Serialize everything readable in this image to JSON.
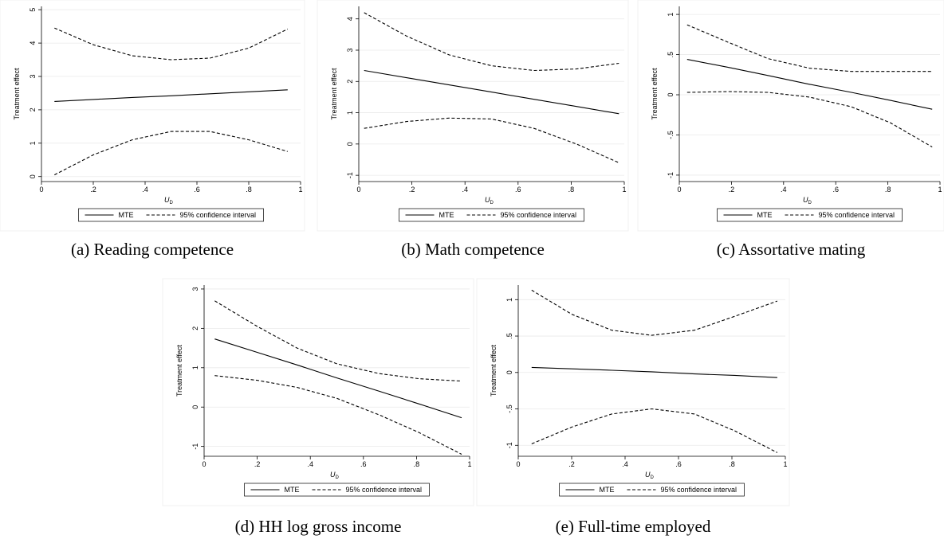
{
  "chart_data": [
    {
      "type": "line",
      "caption": "(a) Reading competence",
      "ylabel": "Treatment effect",
      "xlabel": "U",
      "xlabel_sub": "D",
      "x": [
        0.05,
        0.2,
        0.35,
        0.5,
        0.65,
        0.8,
        0.95
      ],
      "xlim": [
        0,
        1
      ],
      "ylim": [
        -0.15,
        5.1
      ],
      "xticks": [
        0,
        {
          "value": 0.2,
          "label": ".2"
        },
        {
          "value": 0.4,
          "label": ".4"
        },
        {
          "value": 0.6,
          "label": ".6"
        },
        {
          "value": 0.8,
          "label": ".8"
        },
        1
      ],
      "yticks": [
        0,
        1,
        2,
        3,
        4,
        5
      ],
      "grid": true,
      "series": [
        {
          "name": "MTE",
          "color": "#000000",
          "style": "solid",
          "values": [
            2.25,
            2.31,
            2.37,
            2.42,
            2.48,
            2.54,
            2.6
          ]
        },
        {
          "name": "95% confidence interval",
          "color": "#000000",
          "style": "dashed",
          "upper": [
            4.45,
            3.95,
            3.62,
            3.5,
            3.55,
            3.85,
            4.42
          ],
          "lower": [
            0.05,
            0.65,
            1.1,
            1.35,
            1.35,
            1.1,
            0.75
          ]
        }
      ]
    },
    {
      "type": "line",
      "caption": "(b) Math competence",
      "ylabel": "Treatment effect",
      "xlabel": "U",
      "xlabel_sub": "D",
      "x": [
        0.02,
        0.18,
        0.34,
        0.5,
        0.66,
        0.82,
        0.98
      ],
      "xlim": [
        0,
        1
      ],
      "ylim": [
        -1.2,
        4.4
      ],
      "xticks": [
        0,
        {
          "value": 0.2,
          "label": ".2"
        },
        {
          "value": 0.4,
          "label": ".4"
        },
        {
          "value": 0.6,
          "label": ".6"
        },
        {
          "value": 0.8,
          "label": ".8"
        },
        1
      ],
      "yticks": [
        -1,
        0,
        1,
        2,
        3,
        4
      ],
      "grid": true,
      "series": [
        {
          "name": "MTE",
          "color": "#000000",
          "style": "solid",
          "values": [
            2.35,
            2.12,
            1.89,
            1.66,
            1.43,
            1.2,
            0.97
          ]
        },
        {
          "name": "95% confidence interval",
          "color": "#000000",
          "style": "dashed",
          "upper": [
            4.2,
            3.45,
            2.85,
            2.5,
            2.35,
            2.4,
            2.58
          ],
          "lower": [
            0.5,
            0.72,
            0.83,
            0.8,
            0.5,
            0.0,
            -0.6
          ]
        }
      ]
    },
    {
      "type": "line",
      "caption": "(c) Assortative mating",
      "ylabel": "Treatment effect",
      "xlabel": "U",
      "xlabel_sub": "D",
      "x": [
        0.03,
        0.19,
        0.34,
        0.5,
        0.66,
        0.81,
        0.97
      ],
      "xlim": [
        0,
        1
      ],
      "ylim": [
        -1.08,
        1.1
      ],
      "xticks": [
        0,
        {
          "value": 0.2,
          "label": ".2"
        },
        {
          "value": 0.4,
          "label": ".4"
        },
        {
          "value": 0.6,
          "label": ".6"
        },
        {
          "value": 0.8,
          "label": ".8"
        },
        1
      ],
      "yticks": [
        -1,
        {
          "value": -0.5,
          "label": "-.5"
        },
        0,
        {
          "value": 0.5,
          "label": ".5"
        },
        1
      ],
      "grid": true,
      "series": [
        {
          "name": "MTE",
          "color": "#000000",
          "style": "solid",
          "values": [
            0.44,
            0.34,
            0.24,
            0.13,
            0.03,
            -0.07,
            -0.18
          ]
        },
        {
          "name": "95% confidence interval",
          "color": "#000000",
          "style": "dashed",
          "upper": [
            0.87,
            0.65,
            0.45,
            0.33,
            0.29,
            0.29,
            0.29
          ],
          "lower": [
            0.03,
            0.04,
            0.03,
            -0.03,
            -0.15,
            -0.35,
            -0.65
          ]
        }
      ]
    },
    {
      "type": "line",
      "caption": "(d) HH log gross income",
      "ylabel": "Treatment effect",
      "xlabel": "U",
      "xlabel_sub": "D",
      "x": [
        0.04,
        0.2,
        0.35,
        0.5,
        0.66,
        0.81,
        0.97
      ],
      "xlim": [
        0,
        1
      ],
      "ylim": [
        -1.25,
        3.1
      ],
      "xticks": [
        0,
        {
          "value": 0.2,
          "label": ".2"
        },
        {
          "value": 0.4,
          "label": ".4"
        },
        {
          "value": 0.6,
          "label": ".6"
        },
        {
          "value": 0.8,
          "label": ".8"
        },
        1
      ],
      "yticks": [
        -1,
        0,
        1,
        2,
        3
      ],
      "grid": true,
      "series": [
        {
          "name": "MTE",
          "color": "#000000",
          "style": "solid",
          "values": [
            1.73,
            1.39,
            1.07,
            0.74,
            0.4,
            0.08,
            -0.27
          ]
        },
        {
          "name": "95% confidence interval",
          "color": "#000000",
          "style": "dashed",
          "upper": [
            2.7,
            2.05,
            1.5,
            1.1,
            0.85,
            0.72,
            0.66
          ],
          "lower": [
            0.8,
            0.68,
            0.5,
            0.22,
            -0.2,
            -0.65,
            -1.2
          ]
        }
      ]
    },
    {
      "type": "line",
      "caption": "(e) Full-time employed",
      "ylabel": "Treatment effect",
      "xlabel": "U",
      "xlabel_sub": "D",
      "x": [
        0.05,
        0.2,
        0.35,
        0.5,
        0.66,
        0.81,
        0.97
      ],
      "xlim": [
        0,
        1
      ],
      "ylim": [
        -1.15,
        1.2
      ],
      "xticks": [
        0,
        {
          "value": 0.2,
          "label": ".2"
        },
        {
          "value": 0.4,
          "label": ".4"
        },
        {
          "value": 0.6,
          "label": ".6"
        },
        {
          "value": 0.8,
          "label": ".8"
        },
        1
      ],
      "yticks": [
        -1,
        {
          "value": -0.5,
          "label": "-.5"
        },
        0,
        {
          "value": 0.5,
          "label": ".5"
        },
        1
      ],
      "grid": true,
      "series": [
        {
          "name": "MTE",
          "color": "#000000",
          "style": "solid",
          "values": [
            0.07,
            0.05,
            0.03,
            0.01,
            -0.02,
            -0.04,
            -0.07
          ]
        },
        {
          "name": "95% confidence interval",
          "color": "#000000",
          "style": "dashed",
          "upper": [
            1.13,
            0.8,
            0.58,
            0.51,
            0.58,
            0.77,
            0.98
          ],
          "lower": [
            -0.98,
            -0.75,
            -0.57,
            -0.5,
            -0.57,
            -0.8,
            -1.1
          ]
        }
      ]
    }
  ]
}
